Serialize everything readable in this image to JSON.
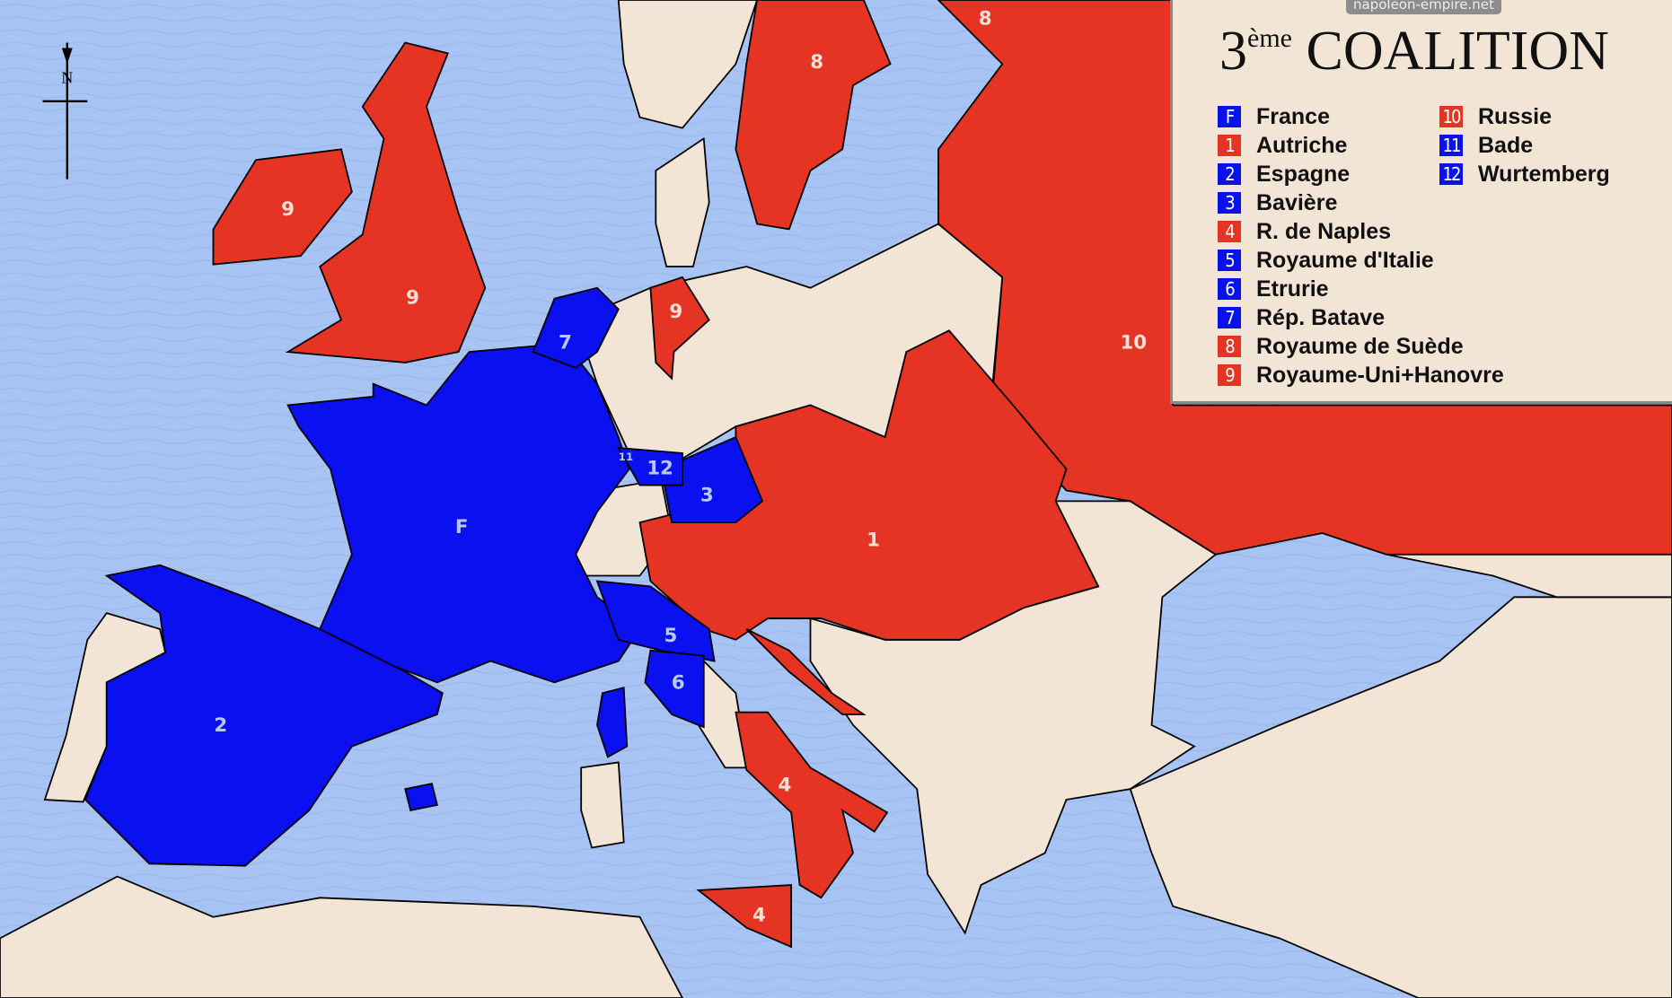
{
  "watermark": "napoleon-empire.net",
  "title": {
    "number": "3",
    "superscript": "ème",
    "text": "COALITION"
  },
  "colors": {
    "sea": "#a8c4f4",
    "land": "#f2e5d5",
    "coalition": "#e63424",
    "france_allies": "#0a10ef"
  },
  "legend": {
    "items": [
      {
        "code": "F",
        "label": "France",
        "color": "#0a10ef"
      },
      {
        "code": "1",
        "label": "Autriche",
        "color": "#e63424"
      },
      {
        "code": "2",
        "label": "Espagne",
        "color": "#0a10ef"
      },
      {
        "code": "3",
        "label": "Bavière",
        "color": "#0a10ef"
      },
      {
        "code": "4",
        "label": "R. de Naples",
        "color": "#e63424"
      },
      {
        "code": "5",
        "label": "Royaume d'Italie",
        "color": "#0a10ef"
      },
      {
        "code": "6",
        "label": "Etrurie",
        "color": "#0a10ef"
      },
      {
        "code": "7",
        "label": "Rép. Batave",
        "color": "#0a10ef"
      },
      {
        "code": "8",
        "label": "Royaume de Suède",
        "color": "#e63424"
      },
      {
        "code": "9",
        "label": "Royaume-Uni+Hanovre",
        "color": "#e63424"
      },
      {
        "code": "10",
        "label": "Russie",
        "color": "#e63424"
      },
      {
        "code": "11",
        "label": "Bade",
        "color": "#0a10ef"
      },
      {
        "code": "12",
        "label": "Wurtemberg",
        "color": "#0a10ef"
      }
    ]
  },
  "compass": {
    "label": "N"
  },
  "map_labels": {
    "ireland": "9",
    "britain": "9",
    "hanover": "9",
    "sweden": "8",
    "finland": "8",
    "russia": "10",
    "austria": "1",
    "spain": "2",
    "bavaria": "3",
    "naples": "4",
    "sicily": "4",
    "italy": "5",
    "etruria": "6",
    "batavia": "7",
    "france": "F",
    "baden": "11",
    "wurtemberg": "12"
  }
}
